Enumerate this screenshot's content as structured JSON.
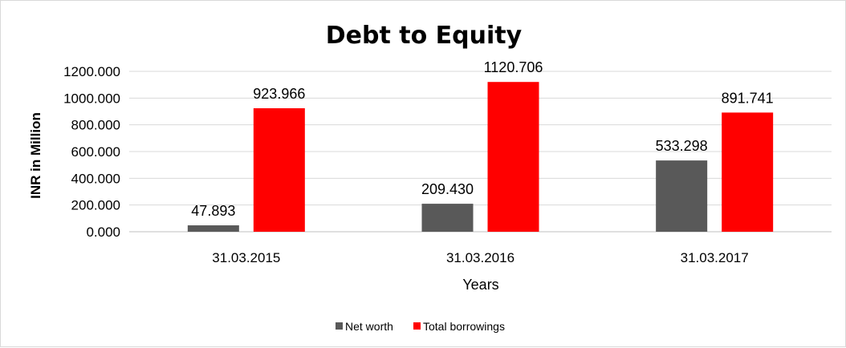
{
  "chart_data": {
    "type": "bar",
    "title": "Debt to Equity",
    "xlabel": "Years",
    "ylabel": "INR in Million",
    "categories": [
      "31.03.2015",
      "31.03.2016",
      "31.03.2017"
    ],
    "series": [
      {
        "name": "Net worth",
        "color": "#595959",
        "values": [
          47.893,
          209.43,
          533.298
        ],
        "labels": [
          "47.893",
          "209.430",
          "533.298"
        ]
      },
      {
        "name": "Total borrowings",
        "color": "#ff0000",
        "values": [
          923.966,
          1120.706,
          891.741
        ],
        "labels": [
          "923.966",
          "1120.706",
          "891.741"
        ]
      }
    ],
    "ylim": [
      0,
      1200
    ],
    "yticks": [
      "0.000",
      "200.000",
      "400.000",
      "600.000",
      "800.000",
      "1000.000",
      "1200.000"
    ],
    "grid": true,
    "legend": "bottom"
  }
}
